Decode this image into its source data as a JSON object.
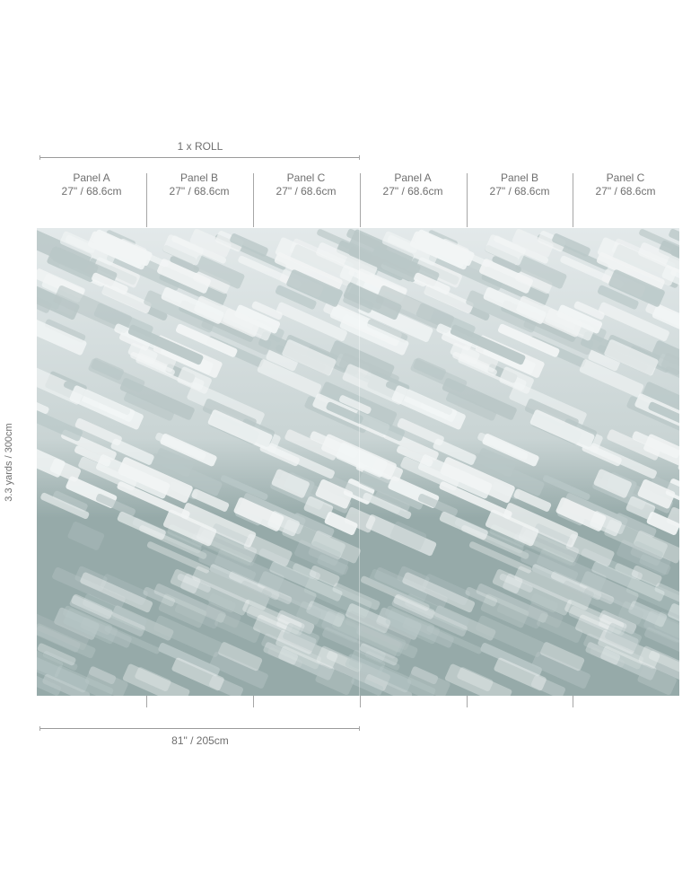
{
  "roll_label": "1 x ROLL",
  "panels": [
    {
      "name": "Panel A",
      "size": "27\" / 68.6cm"
    },
    {
      "name": "Panel B",
      "size": "27\" / 68.6cm"
    },
    {
      "name": "Panel C",
      "size": "27\" / 68.6cm"
    },
    {
      "name": "Panel A",
      "size": "27\" / 68.6cm"
    },
    {
      "name": "Panel B",
      "size": "27\" / 68.6cm"
    },
    {
      "name": "Panel C",
      "size": "27\" / 68.6cm"
    }
  ],
  "height_label": "3.3 yards / 300cm",
  "width_label": "81\" / 205cm",
  "colors": {
    "top": "#e3e9ea",
    "base": "#96aaa9",
    "stroke_light": "#f2f5f5",
    "stroke_mid": "#b9c7c7"
  }
}
